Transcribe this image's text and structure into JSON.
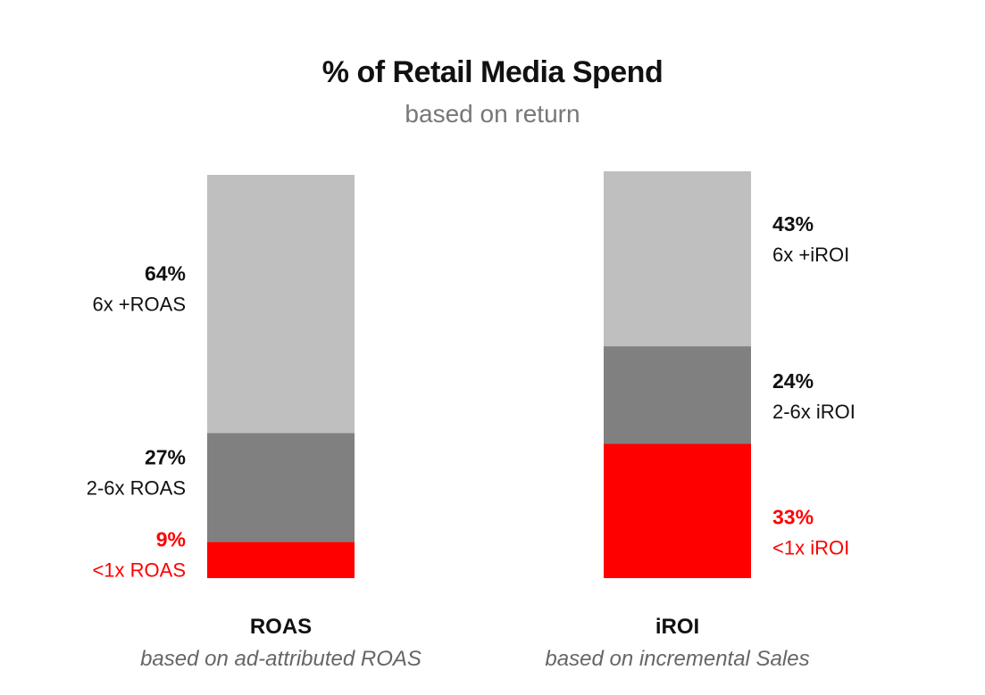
{
  "chart_data": {
    "type": "bar",
    "stacked": true,
    "title": "% of Retail Media Spend",
    "subtitle": "based on return",
    "ylim": [
      0,
      100
    ],
    "colors": {
      "high": "#bfbfbf",
      "mid": "#808080",
      "low": "#ff0000",
      "text": "#111111",
      "text_low": "#ff0000"
    },
    "bars": [
      {
        "category": "ROAS",
        "caption": "based on ad-attributed ROAS",
        "label_side": "left",
        "segments": [
          {
            "key": "low",
            "value": 9,
            "pct_label": "9%",
            "label": "<1x ROAS"
          },
          {
            "key": "mid",
            "value": 27,
            "pct_label": "27%",
            "label": "2-6x ROAS"
          },
          {
            "key": "high",
            "value": 64,
            "pct_label": "64%",
            "label": "6x +ROAS"
          }
        ]
      },
      {
        "category": "iROI",
        "caption": "based on incremental Sales",
        "label_side": "right",
        "segments": [
          {
            "key": "low",
            "value": 33,
            "pct_label": "33%",
            "label": "<1x iROI"
          },
          {
            "key": "mid",
            "value": 24,
            "pct_label": "24%",
            "label": "2-6x iROI"
          },
          {
            "key": "high",
            "value": 43,
            "pct_label": "43%",
            "label": "6x +iROI"
          }
        ]
      }
    ]
  }
}
